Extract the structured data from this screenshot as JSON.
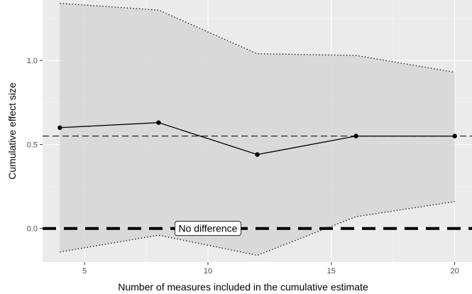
{
  "chart_data": {
    "type": "line",
    "xlabel": "Number of measures included in the cumulative estimate",
    "ylabel": "Cumulative effect size",
    "xlim": [
      3.3,
      20.7
    ],
    "ylim": [
      -0.2,
      1.36
    ],
    "x_ticks": [
      5,
      10,
      15,
      20
    ],
    "y_ticks": [
      0.0,
      0.5,
      1.0
    ],
    "y_tick_labels": [
      "0.0",
      "0.5",
      "1.0"
    ],
    "grid": true,
    "series": [
      {
        "role": "estimate",
        "style": "solid line with points",
        "color": "#000000",
        "x": [
          4,
          8,
          12,
          16,
          20
        ],
        "y": [
          0.6,
          0.63,
          0.44,
          0.55,
          0.55
        ]
      },
      {
        "role": "upper-bound",
        "style": "dotted",
        "color": "#000000",
        "x": [
          4,
          8,
          12,
          16,
          20
        ],
        "y": [
          1.34,
          1.3,
          1.04,
          1.03,
          0.93
        ]
      },
      {
        "role": "lower-bound",
        "style": "dotted",
        "color": "#000000",
        "x": [
          4,
          8,
          12,
          16,
          20
        ],
        "y": [
          -0.14,
          -0.04,
          -0.16,
          0.07,
          0.16
        ]
      }
    ],
    "ribbon_color": "#d6d6d6",
    "reference_lines": [
      {
        "role": "pooled-estimate",
        "y": 0.55,
        "style": "dashed-thin"
      },
      {
        "role": "null-effect",
        "y": 0.0,
        "style": "dashed-thick"
      }
    ],
    "annotation": {
      "text": "No difference",
      "x": 10,
      "y": 0.0
    },
    "colors": {
      "panel": "#ebebeb",
      "grid_major": "#ffffff",
      "grid_minor": "#f5f5f5",
      "line": "#000000"
    }
  }
}
